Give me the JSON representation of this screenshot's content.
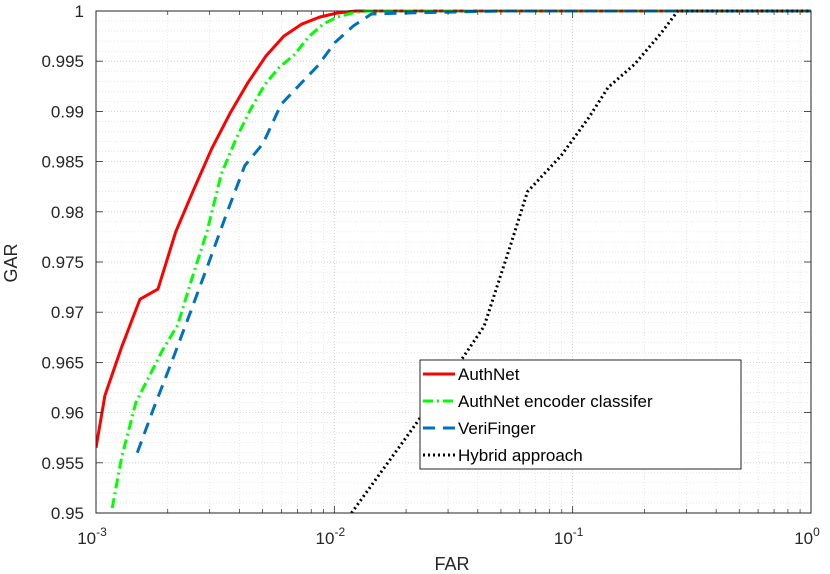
{
  "chart_data": {
    "type": "line",
    "xlabel": "FAR",
    "ylabel": "GAR",
    "xscale": "log",
    "xlim": [
      0.001,
      1
    ],
    "ylim": [
      0.95,
      1
    ],
    "grid": true,
    "minor_grid": true,
    "legend_position": "bottom-right",
    "x_ticks": [
      {
        "value": 0.001,
        "base": "10",
        "exp": "-3"
      },
      {
        "value": 0.01,
        "base": "10",
        "exp": "-2"
      },
      {
        "value": 0.1,
        "base": "10",
        "exp": "-1"
      },
      {
        "value": 1,
        "base": "10",
        "exp": "0"
      }
    ],
    "y_ticks": [
      {
        "value": 0.95,
        "label": "0.95"
      },
      {
        "value": 0.955,
        "label": "0.955"
      },
      {
        "value": 0.96,
        "label": "0.96"
      },
      {
        "value": 0.965,
        "label": "0.965"
      },
      {
        "value": 0.97,
        "label": "0.97"
      },
      {
        "value": 0.975,
        "label": "0.975"
      },
      {
        "value": 0.98,
        "label": "0.98"
      },
      {
        "value": 0.985,
        "label": "0.985"
      },
      {
        "value": 0.99,
        "label": "0.99"
      },
      {
        "value": 0.995,
        "label": "0.995"
      },
      {
        "value": 1,
        "label": "1"
      }
    ],
    "series": [
      {
        "name": "AuthNet",
        "color": "#ff0000",
        "dash": "solid",
        "x": [
          0.001,
          0.00109,
          0.00128,
          0.00153,
          0.00182,
          0.00216,
          0.00258,
          0.00306,
          0.00365,
          0.00435,
          0.00516,
          0.00614,
          0.00731,
          0.0087,
          0.0103,
          0.0123,
          0.0146,
          0.02,
          0.05,
          0.2,
          1
        ],
        "y": [
          0.9565,
          0.9617,
          0.9665,
          0.9713,
          0.9723,
          0.978,
          0.9823,
          0.9863,
          0.9898,
          0.9929,
          0.9955,
          0.9975,
          0.9987,
          0.9994,
          0.9998,
          1.0,
          1.0,
          1.0,
          1.0,
          1.0,
          1.0
        ]
      },
      {
        "name": "AuthNet encoder classifer",
        "color": "#00ff00",
        "dash": "dashdot",
        "x": [
          0.00117,
          0.00128,
          0.00147,
          0.00168,
          0.00191,
          0.0022,
          0.00253,
          0.00292,
          0.00336,
          0.00386,
          0.00445,
          0.00512,
          0.00588,
          0.00677,
          0.00779,
          0.00897,
          0.0103,
          0.0119,
          0.0137,
          0.02,
          0.05,
          0.2,
          1
        ],
        "y": [
          0.9505,
          0.9555,
          0.961,
          0.9637,
          0.9663,
          0.9687,
          0.9734,
          0.978,
          0.9838,
          0.9872,
          0.9902,
          0.9927,
          0.9944,
          0.9956,
          0.9974,
          0.9987,
          0.9994,
          0.9998,
          1.0,
          1.0,
          1.0,
          1.0,
          1.0
        ]
      },
      {
        "name": "VeriFinger",
        "color": "#0072bd",
        "dash": "dash",
        "x": [
          0.00149,
          0.00175,
          0.00209,
          0.00249,
          0.00297,
          0.00353,
          0.00421,
          0.00502,
          0.00598,
          0.00712,
          0.00849,
          0.0101,
          0.012,
          0.0143,
          0.02,
          0.05,
          0.2,
          1
        ],
        "y": [
          0.956,
          0.9605,
          0.9652,
          0.97,
          0.9749,
          0.9798,
          0.9846,
          0.9868,
          0.9907,
          0.9926,
          0.9945,
          0.9969,
          0.9985,
          0.9997,
          0.9998,
          1.0,
          1.0,
          1.0
        ]
      },
      {
        "name": "Hybrid approach",
        "color": "#000000",
        "dash": "dotted",
        "x": [
          0.0118,
          0.0153,
          0.0197,
          0.0255,
          0.0329,
          0.0425,
          0.0549,
          0.0646,
          0.0895,
          0.117,
          0.141,
          0.182,
          0.235,
          0.276,
          0.4,
          0.7,
          1
        ],
        "y": [
          0.95,
          0.9537,
          0.9573,
          0.961,
          0.9647,
          0.9686,
          0.9767,
          0.982,
          0.9856,
          0.9894,
          0.9924,
          0.9947,
          0.9978,
          1.0,
          1.0,
          1.0,
          1.0
        ]
      }
    ]
  }
}
